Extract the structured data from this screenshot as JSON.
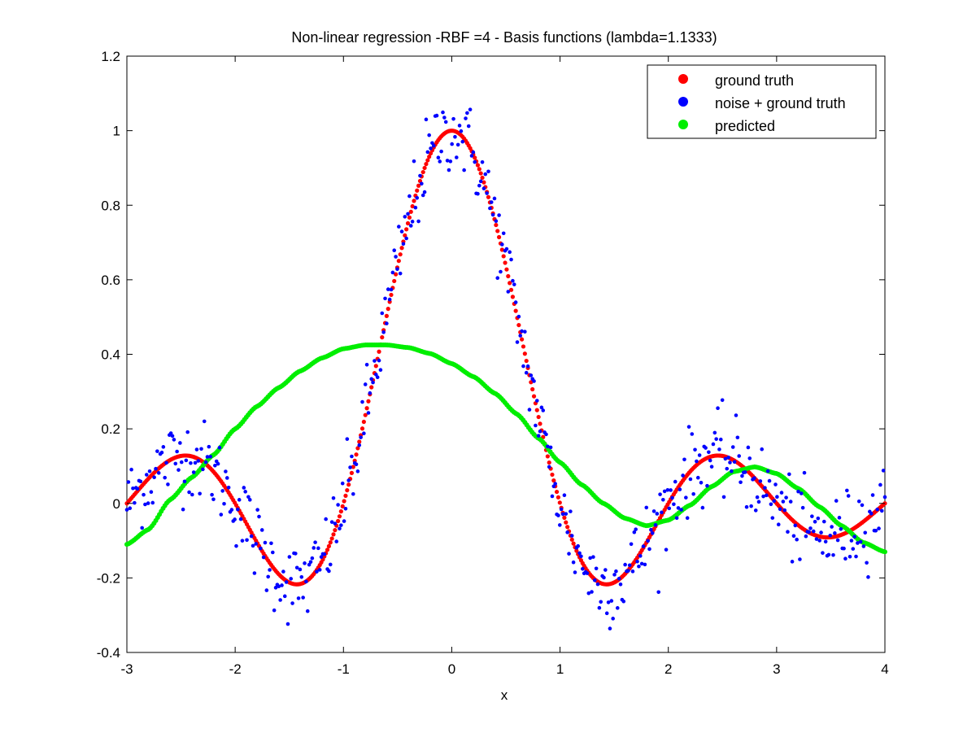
{
  "chart_data": {
    "type": "scatter",
    "title": "Non-linear regression -RBF =4 - Basis functions (lambda=1.1333)",
    "xlabel": "x",
    "ylabel": "",
    "xlim": [
      -3,
      4
    ],
    "ylim": [
      -0.4,
      1.2
    ],
    "xticks": [
      -3,
      -2,
      -1,
      0,
      1,
      2,
      3,
      4
    ],
    "yticks": [
      -0.4,
      -0.2,
      0,
      0.2,
      0.4,
      0.6,
      0.8,
      1,
      1.2
    ],
    "xtick_labels": [
      "-3",
      "-2",
      "-1",
      "0",
      "1",
      "2",
      "3",
      "4"
    ],
    "ytick_labels": [
      "-0.4",
      "-0.2",
      "0",
      "0.2",
      "0.4",
      "0.6",
      "0.8",
      "1",
      "1.2"
    ],
    "legend_position": "top-right",
    "series": [
      {
        "name": "ground truth",
        "color": "#ff0000",
        "description_function": "sinc(x) = sin(pi x)/(pi x)",
        "x_start": -3,
        "x_end": 4,
        "count": 500
      },
      {
        "name": "noise + ground truth",
        "color": "#0000ff",
        "description_function": "sinc(x) + gaussian noise (sd ~0.06)",
        "x_start": -3,
        "x_end": 4,
        "count": 500
      },
      {
        "name": "predicted",
        "color": "#00ee00",
        "points": [
          [
            -3.0,
            -0.11
          ],
          [
            -2.8,
            -0.07
          ],
          [
            -2.6,
            0.01
          ],
          [
            -2.4,
            0.07
          ],
          [
            -2.2,
            0.13
          ],
          [
            -2.0,
            0.2
          ],
          [
            -1.8,
            0.26
          ],
          [
            -1.6,
            0.31
          ],
          [
            -1.4,
            0.355
          ],
          [
            -1.2,
            0.39
          ],
          [
            -1.0,
            0.415
          ],
          [
            -0.8,
            0.425
          ],
          [
            -0.6,
            0.425
          ],
          [
            -0.4,
            0.418
          ],
          [
            -0.2,
            0.402
          ],
          [
            0.0,
            0.375
          ],
          [
            0.2,
            0.34
          ],
          [
            0.4,
            0.295
          ],
          [
            0.6,
            0.24
          ],
          [
            0.8,
            0.175
          ],
          [
            1.0,
            0.11
          ],
          [
            1.2,
            0.05
          ],
          [
            1.4,
            0.0
          ],
          [
            1.6,
            -0.04
          ],
          [
            1.8,
            -0.06
          ],
          [
            2.0,
            -0.045
          ],
          [
            2.2,
            -0.005
          ],
          [
            2.4,
            0.045
          ],
          [
            2.6,
            0.085
          ],
          [
            2.8,
            0.098
          ],
          [
            3.0,
            0.08
          ],
          [
            3.2,
            0.04
          ],
          [
            3.4,
            -0.01
          ],
          [
            3.6,
            -0.06
          ],
          [
            3.8,
            -0.105
          ],
          [
            4.0,
            -0.13
          ]
        ]
      }
    ]
  }
}
